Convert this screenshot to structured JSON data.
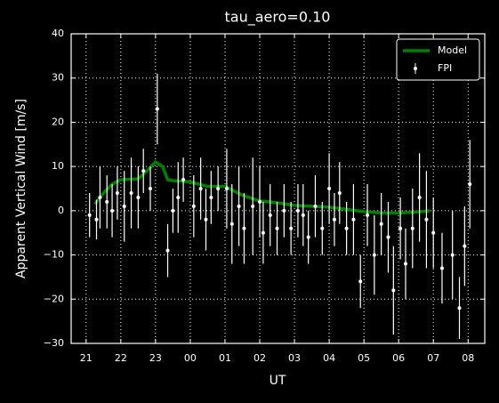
{
  "chart_data": {
    "type": "line",
    "title": "tau_aero=0.10",
    "x_label": "UT",
    "y_label": "Apparent Vertical Wind [m/s]",
    "xlim": [
      20.57,
      32.48
    ],
    "ylim": [
      -30,
      40
    ],
    "xticks": [
      21,
      22,
      23,
      {
        "value": 24,
        "label": "00"
      },
      {
        "value": 25,
        "label": "01"
      },
      {
        "value": 26,
        "label": "02"
      },
      {
        "value": 27,
        "label": "03"
      },
      {
        "value": 28,
        "label": "04"
      },
      {
        "value": 29,
        "label": "05"
      },
      {
        "value": 30,
        "label": "06"
      },
      {
        "value": 31,
        "label": "07"
      },
      {
        "value": 32,
        "label": "08"
      }
    ],
    "yticks": [
      {
        "value": -30,
        "label": "−30"
      },
      {
        "value": -20,
        "label": "−20"
      },
      {
        "value": -10,
        "label": "−10"
      },
      0,
      10,
      20,
      30,
      40
    ],
    "grid": true,
    "legend": "upper right",
    "series": [
      {
        "name": "Model",
        "color": "#007f00",
        "x": [
          21.25,
          21.5,
          21.75,
          22,
          22.5,
          22.75,
          23,
          23.2,
          23.35,
          23.5,
          24,
          24.5,
          25,
          25.5,
          26,
          26.5,
          27,
          27.5,
          28,
          28.5,
          29,
          29.5,
          30,
          30.5,
          30.9
        ],
        "values": [
          1.5,
          4,
          6,
          7,
          7.2,
          9,
          11,
          10,
          7,
          6.8,
          6.5,
          5.5,
          5.5,
          3.5,
          2.2,
          1.8,
          1.2,
          1,
          0.8,
          0.3,
          -0.2,
          -0.5,
          -0.5,
          -0.3,
          0
        ]
      },
      {
        "name": "FPI",
        "color": "#ffffff",
        "x": [
          21.1,
          21.3,
          21.4,
          21.6,
          21.75,
          21.9,
          22.1,
          22.3,
          22.5,
          22.65,
          22.85,
          23.05,
          23.35,
          23.5,
          23.65,
          23.8,
          24.1,
          24.3,
          24.45,
          24.6,
          24.8,
          25.05,
          25.2,
          25.4,
          25.55,
          25.8,
          26,
          26.1,
          26.3,
          26.5,
          26.7,
          26.9,
          27.1,
          27.25,
          27.4,
          27.6,
          27.8,
          28,
          28.15,
          28.3,
          28.5,
          28.7,
          28.9,
          29.1,
          29.3,
          29.5,
          29.7,
          29.85,
          30.05,
          30.2,
          30.4,
          30.6,
          30.8,
          31,
          31.25,
          31.55,
          31.75,
          31.9,
          32.05
        ],
        "values": [
          -1,
          -2,
          3,
          2,
          0,
          4,
          1,
          4,
          3,
          9,
          5,
          23,
          -9,
          0,
          3,
          7,
          1,
          5,
          -2,
          3,
          5,
          5,
          -3,
          1,
          -4,
          1,
          2,
          -5,
          -1,
          -4,
          0,
          -4,
          0,
          -1,
          -6,
          1,
          -4,
          5,
          -2,
          4,
          -4,
          -2,
          -16,
          -1,
          -10,
          -3,
          -6,
          -18,
          -4,
          -12,
          -4,
          3,
          -2,
          -5,
          -13,
          -10,
          -22,
          -8,
          6
        ],
        "errors": [
          5,
          4.5,
          7,
          6,
          6,
          6,
          8,
          8,
          7,
          5,
          5,
          8,
          6,
          5,
          8,
          5,
          7,
          7,
          7,
          6,
          5,
          9,
          9,
          9,
          8,
          11,
          8,
          7,
          7,
          6,
          6,
          6,
          6,
          7,
          6,
          7,
          6,
          8,
          6,
          7,
          6,
          8,
          6,
          7,
          9,
          7,
          8,
          10,
          7,
          8,
          9,
          10,
          11,
          8,
          8,
          10,
          7,
          9,
          10
        ]
      }
    ]
  }
}
